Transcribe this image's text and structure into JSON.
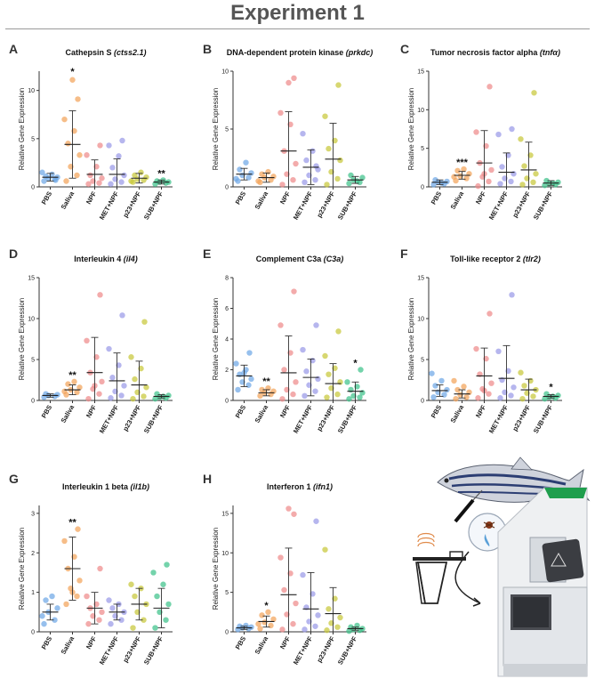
{
  "page": {
    "title": "Experiment 1"
  },
  "colors": {
    "PBS": "#6fa8e6",
    "Saliva": "#f2a35a",
    "NPF": "#ef8a8a",
    "MET+NPF": "#9a9ae8",
    "p23+NPF": "#c8c83a",
    "SUB+NPF": "#3fc28a"
  },
  "chart_data": [
    {
      "panel": "A",
      "type": "scatter",
      "title": "Cathepsin S",
      "gene": "(ctss2.1)",
      "ylabel": "Relative Gene Expression",
      "ylim": [
        0,
        12
      ],
      "yticks": [
        0,
        5,
        10
      ],
      "categories": [
        "PBS",
        "Saliva",
        "NPF",
        "MET+NPF",
        "p23+NPF",
        "SUB+NPF"
      ],
      "means": [
        1.0,
        4.4,
        1.3,
        1.3,
        0.9,
        0.5
      ],
      "sd": [
        0.4,
        3.5,
        1.5,
        1.6,
        0.5,
        0.2
      ],
      "significance": [
        "",
        "*",
        "",
        "",
        "",
        "**"
      ],
      "points": [
        [
          0.6,
          0.8,
          0.9,
          1.0,
          1.1,
          1.3,
          1.5,
          0.7
        ],
        [
          0.6,
          1.2,
          2.1,
          3.3,
          4.5,
          5.8,
          7.0,
          9.1,
          11.1
        ],
        [
          0.3,
          0.4,
          0.6,
          0.9,
          1.2,
          2.1,
          3.3,
          4.3
        ],
        [
          0.3,
          0.5,
          0.8,
          1.2,
          2.0,
          3.2,
          4.3,
          4.8
        ],
        [
          0.5,
          0.7,
          0.8,
          1.0,
          1.2,
          1.5,
          0.6
        ],
        [
          0.3,
          0.4,
          0.5,
          0.5,
          0.6,
          0.7
        ]
      ]
    },
    {
      "panel": "B",
      "type": "scatter",
      "title": "DNA-dependent protein kinase",
      "gene": "(prkdc)",
      "ylabel": "Relative Gene Expression",
      "ylim": [
        0,
        10
      ],
      "yticks": [
        0,
        5,
        10
      ],
      "categories": [
        "PBS",
        "Saliva",
        "NPF",
        "MET+NPF",
        "p23+NPF",
        "SUB+NPF"
      ],
      "means": [
        1.1,
        0.8,
        3.1,
        1.7,
        2.4,
        0.6
      ],
      "sd": [
        0.5,
        0.4,
        3.4,
        1.5,
        3.1,
        0.3
      ],
      "significance": [
        "",
        "",
        "",
        "",
        "",
        ""
      ],
      "points": [
        [
          0.5,
          0.8,
          1.0,
          1.2,
          1.5,
          2.1,
          0.7
        ],
        [
          0.4,
          0.6,
          0.8,
          0.9,
          1.1,
          1.3,
          0.5
        ],
        [
          0.2,
          0.6,
          1.1,
          2.0,
          3.1,
          5.4,
          6.4,
          9.4,
          9.0
        ],
        [
          0.4,
          0.6,
          1.0,
          1.5,
          2.3,
          3.1,
          4.6,
          1.8
        ],
        [
          0.2,
          0.7,
          1.3,
          2.3,
          3.3,
          4.0,
          6.1,
          8.8
        ],
        [
          0.3,
          0.4,
          0.6,
          0.8,
          1.0,
          0.5
        ]
      ]
    },
    {
      "panel": "C",
      "type": "scatter",
      "title": "Tumor necrosis factor alpha",
      "gene": "(tnfα)",
      "ylabel": "Relative Gene Expression",
      "ylim": [
        0,
        15
      ],
      "yticks": [
        0,
        5,
        10,
        15
      ],
      "categories": [
        "PBS",
        "Saliva",
        "NPF",
        "MET+NPF",
        "p23+NPF",
        "SUB+NPF"
      ],
      "means": [
        0.6,
        1.5,
        3.1,
        1.9,
        2.2,
        0.5
      ],
      "sd": [
        0.3,
        0.5,
        4.2,
        2.5,
        3.6,
        0.3
      ],
      "significance": [
        "",
        "***",
        "",
        "",
        "",
        ""
      ],
      "points": [
        [
          0.3,
          0.4,
          0.6,
          0.7,
          0.9,
          0.5
        ],
        [
          0.8,
          1.1,
          1.4,
          1.7,
          2.1,
          2.3,
          1.3
        ],
        [
          0.1,
          0.7,
          1.3,
          2.2,
          3.1,
          5.3,
          7.1,
          13.0,
          1.7
        ],
        [
          0.4,
          0.7,
          1.1,
          1.7,
          2.6,
          4.1,
          6.8,
          7.5
        ],
        [
          0.3,
          0.6,
          1.1,
          1.7,
          2.7,
          4.1,
          6.2,
          12.2
        ],
        [
          0.2,
          0.3,
          0.4,
          0.6,
          0.8,
          0.5
        ]
      ]
    },
    {
      "panel": "D",
      "type": "scatter",
      "title": "Interleukin 4",
      "gene": "(il4)",
      "ylabel": "Relative Gene Expression",
      "ylim": [
        0,
        15
      ],
      "yticks": [
        0,
        5,
        10,
        15
      ],
      "categories": [
        "PBS",
        "Saliva",
        "NPF",
        "MET+NPF",
        "p23+NPF",
        "SUB+NPF"
      ],
      "means": [
        0.6,
        1.3,
        3.4,
        2.4,
        1.9,
        0.5
      ],
      "sd": [
        0.2,
        0.6,
        4.3,
        3.4,
        2.9,
        0.2
      ],
      "significance": [
        "",
        "**",
        "",
        "",
        "",
        ""
      ],
      "points": [
        [
          0.4,
          0.5,
          0.6,
          0.7,
          0.8
        ],
        [
          0.7,
          1.0,
          1.3,
          1.6,
          2.0,
          2.3,
          1.1
        ],
        [
          0.2,
          0.8,
          1.4,
          2.3,
          3.4,
          5.3,
          7.3,
          12.9,
          1.8
        ],
        [
          0.3,
          0.6,
          1.1,
          1.8,
          2.8,
          4.3,
          6.3,
          10.4
        ],
        [
          0.2,
          0.5,
          1.0,
          1.6,
          2.6,
          3.9,
          5.3,
          9.6
        ],
        [
          0.2,
          0.3,
          0.4,
          0.6,
          0.8,
          0.5
        ]
      ]
    },
    {
      "panel": "E",
      "type": "scatter",
      "title": "Complement C3a",
      "gene": "(C3a)",
      "ylabel": "Relative Gene Expression",
      "ylim": [
        0,
        8
      ],
      "yticks": [
        0,
        2,
        4,
        6,
        8
      ],
      "categories": [
        "PBS",
        "Saliva",
        "NPF",
        "MET+NPF",
        "p23+NPF",
        "SUB+NPF"
      ],
      "means": [
        1.6,
        0.5,
        1.8,
        1.5,
        1.1,
        0.6
      ],
      "sd": [
        0.7,
        0.2,
        2.4,
        1.2,
        1.3,
        0.6
      ],
      "significance": [
        "",
        "**",
        "",
        "",
        "",
        "*"
      ],
      "points": [
        [
          0.7,
          1.0,
          1.2,
          1.4,
          1.7,
          2.0,
          2.4,
          3.1,
          1.8
        ],
        [
          0.3,
          0.4,
          0.5,
          0.6,
          0.7,
          0.8
        ],
        [
          0.1,
          0.4,
          0.7,
          1.2,
          2.0,
          3.1,
          4.9,
          7.1
        ],
        [
          0.3,
          0.6,
          1.0,
          1.4,
          1.9,
          2.6,
          3.3,
          4.9
        ],
        [
          0.2,
          0.4,
          0.8,
          1.2,
          1.7,
          2.1,
          2.9,
          4.5
        ],
        [
          0.1,
          0.2,
          0.3,
          0.5,
          0.7,
          0.9,
          1.2,
          2.0
        ]
      ]
    },
    {
      "panel": "F",
      "type": "scatter",
      "title": "Toll-like receptor 2",
      "gene": "(tlr2)",
      "ylabel": "Relative Gene Expression",
      "ylim": [
        0,
        15
      ],
      "yticks": [
        0,
        5,
        10,
        15
      ],
      "categories": [
        "PBS",
        "Saliva",
        "NPF",
        "MET+NPF",
        "p23+NPF",
        "SUB+NPF"
      ],
      "means": [
        1.2,
        0.8,
        3.0,
        2.7,
        1.3,
        0.5
      ],
      "sd": [
        0.7,
        0.5,
        3.4,
        4.0,
        1.3,
        0.2
      ],
      "significance": [
        "",
        "",
        "",
        "",
        "",
        "*"
      ],
      "points": [
        [
          0.4,
          0.7,
          1.0,
          1.3,
          1.8,
          2.4,
          3.3
        ],
        [
          0.2,
          0.4,
          0.7,
          1.0,
          1.3,
          1.7,
          2.4
        ],
        [
          0.3,
          0.8,
          1.4,
          2.1,
          3.2,
          5.1,
          6.3,
          10.6,
          1.2
        ],
        [
          0.3,
          0.6,
          1.0,
          1.6,
          2.5,
          3.6,
          6.0,
          12.9
        ],
        [
          0.2,
          0.5,
          0.9,
          1.3,
          1.8,
          2.4,
          3.4
        ],
        [
          0.2,
          0.3,
          0.4,
          0.6,
          0.8,
          0.5
        ]
      ]
    },
    {
      "panel": "G",
      "type": "scatter",
      "title": "Interleukin 1 beta",
      "gene": "(il1b)",
      "ylabel": "Relative Gene Expression",
      "ylim": [
        0,
        3.2
      ],
      "yticks": [
        0,
        1,
        2,
        3
      ],
      "categories": [
        "PBS",
        "Saliva",
        "NPF",
        "MET+NPF",
        "p23+NPF",
        "SUB+NPF"
      ],
      "means": [
        0.5,
        1.6,
        0.6,
        0.5,
        0.7,
        0.6
      ],
      "sd": [
        0.2,
        0.8,
        0.4,
        0.2,
        0.4,
        0.5
      ],
      "significance": [
        "",
        "**",
        "",
        "",
        "",
        ""
      ],
      "points": [
        [
          0.2,
          0.3,
          0.5,
          0.6,
          0.8,
          0.9,
          0.4
        ],
        [
          0.7,
          0.9,
          1.1,
          1.3,
          1.6,
          1.9,
          2.3,
          2.6,
          1.0
        ],
        [
          0.2,
          0.3,
          0.4,
          0.5,
          0.6,
          0.7,
          0.9,
          1.6
        ],
        [
          0.2,
          0.3,
          0.4,
          0.5,
          0.6,
          0.7,
          0.8
        ],
        [
          0.1,
          0.3,
          0.5,
          0.7,
          0.9,
          1.1,
          1.2
        ],
        [
          0.1,
          0.3,
          0.5,
          0.7,
          0.9,
          1.2,
          1.5,
          1.7
        ]
      ]
    },
    {
      "panel": "H",
      "type": "scatter",
      "title": "Interferon 1",
      "gene": "(ifn1)",
      "ylabel": "Relative Gene Expression",
      "ylim": [
        0,
        16
      ],
      "yticks": [
        0,
        5,
        10,
        15
      ],
      "categories": [
        "PBS",
        "Saliva",
        "NPF",
        "MET+NPF",
        "p23+NPF",
        "SUB+NPF"
      ],
      "means": [
        0.5,
        1.3,
        4.7,
        2.9,
        2.3,
        0.4
      ],
      "sd": [
        0.2,
        0.7,
        5.9,
        4.6,
        3.3,
        0.2
      ],
      "significance": [
        "",
        "*",
        "",
        "",
        "",
        ""
      ],
      "points": [
        [
          0.3,
          0.4,
          0.5,
          0.6,
          0.7,
          0.8
        ],
        [
          0.4,
          0.8,
          1.2,
          1.6,
          2.1,
          2.5,
          1.0
        ],
        [
          0.3,
          1.0,
          2.2,
          3.6,
          5.3,
          7.4,
          9.4,
          14.9,
          15.6
        ],
        [
          0.3,
          0.7,
          1.3,
          2.1,
          3.1,
          4.8,
          7.2,
          14.0
        ],
        [
          0.2,
          0.6,
          1.1,
          1.8,
          2.9,
          4.2,
          10.4
        ],
        [
          0.1,
          0.2,
          0.3,
          0.4,
          0.6,
          0.8
        ]
      ]
    }
  ],
  "panel_labels": [
    "A",
    "B",
    "C",
    "D",
    "E",
    "F",
    "G",
    "H"
  ]
}
